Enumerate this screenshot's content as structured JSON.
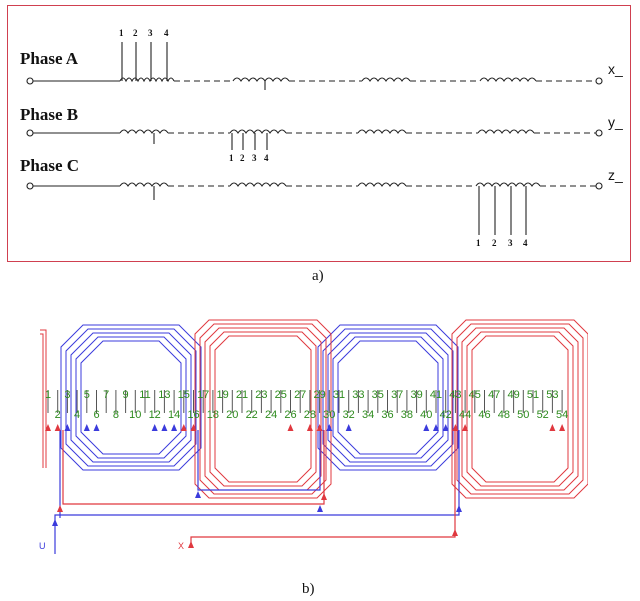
{
  "figure_a": {
    "phases": [
      {
        "label": "Phase A",
        "end": "x_"
      },
      {
        "label": "Phase B",
        "end": "y_"
      },
      {
        "label": "Phase C",
        "end": "z_"
      }
    ],
    "taps": [
      "1",
      "2",
      "3",
      "4"
    ],
    "caption": "a)"
  },
  "figure_b": {
    "slots_top": [
      "1",
      "3",
      "5",
      "7",
      "9",
      "11",
      "13",
      "15",
      "17",
      "19",
      "21",
      "23",
      "25",
      "27",
      "29",
      "31",
      "33",
      "35",
      "37",
      "39",
      "41",
      "43",
      "45",
      "47",
      "49",
      "51",
      "53"
    ],
    "slots_bottom": [
      "2",
      "4",
      "6",
      "8",
      "10",
      "12",
      "14",
      "16",
      "18",
      "20",
      "22",
      "24",
      "26",
      "28",
      "30",
      "32",
      "34",
      "36",
      "38",
      "40",
      "42",
      "44",
      "46",
      "48",
      "50",
      "52",
      "54"
    ],
    "terminal_u": "U",
    "terminal_x": "X",
    "caption": "b)",
    "colors": {
      "blue": "#3b3bdc",
      "red": "#e0383f",
      "slot_text": "#2e8b1e"
    }
  }
}
